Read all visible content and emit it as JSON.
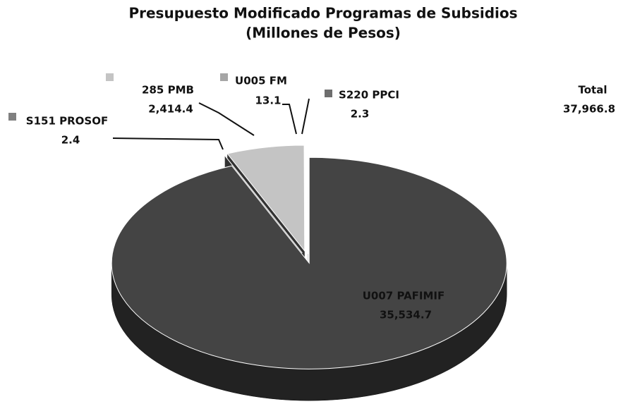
{
  "chart_data": {
    "type": "pie",
    "title": "Presupuesto Modificado Programas de Subsidios",
    "subtitle": "(Millones de Pesos)",
    "labels": [
      "U007 PAFIMIF",
      "S151 PROSOF",
      "285 PMB",
      "U005 FM",
      "S220 PPCI"
    ],
    "values": [
      35534.7,
      2.4,
      2414.4,
      13.1,
      2.3
    ],
    "value_labels": [
      "35,534.7",
      "2.4",
      "2,414.4",
      "13.1",
      "2.3"
    ],
    "colors": [
      "#444444",
      "#808080",
      "#c4c4c4",
      "#a6a6a6",
      "#6e6e6e"
    ],
    "total": {
      "label": "Total",
      "value": 37966.8,
      "value_label": "37,966.8"
    }
  }
}
